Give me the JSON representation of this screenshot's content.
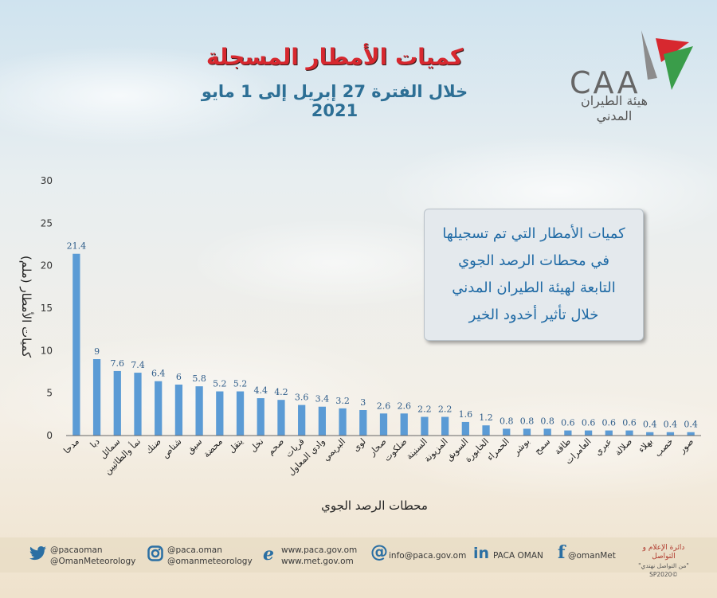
{
  "header": {
    "title": "كميات الأمطار المسجلة",
    "subtitle": "خلال الفترة 27 إبريل إلى 1 مايو 2021"
  },
  "logo": {
    "text": "CAA",
    "arabic": "هيئة الطيران المدني"
  },
  "info_box": {
    "lines": [
      "كميات الأمطار التي تم تسجيلها",
      "في محطات الرصد الجوي",
      "التابعة لهيئة الطيران المدني",
      "خلال تأثير أخدود الخير"
    ]
  },
  "footer": {
    "twitter": [
      "@pacaoman",
      "@OmanMeteorology"
    ],
    "instagram": [
      "@paca.oman",
      "@omanmeteorology"
    ],
    "web": [
      "www.paca.gov.om",
      "www.met.gov.om"
    ],
    "email": "info@paca.gov.om",
    "linkedin": "PACA OMAN",
    "facebook": "@omanMet",
    "department": [
      "دائرة الإعلام و التواصل",
      "\"من التواصل نهتدي\"",
      "©SP2020"
    ]
  },
  "colors": {
    "bar": "#5b9bd5",
    "title": "#d7282f",
    "subtitle": "#2d6f95",
    "axis_text": "#333333"
  },
  "chart_data": {
    "type": "bar",
    "title": "",
    "xlabel": "محطات الرصد الجوي",
    "ylabel": "كميات الأمطار (ملم)",
    "ylim": [
      0,
      30
    ],
    "yticks": [
      0,
      5,
      10,
      15,
      20,
      25,
      30
    ],
    "grid": false,
    "legend": "none",
    "categories": [
      "مدحا",
      "دبا",
      "سمائل",
      "نمأ والطائيين",
      "ضنك",
      "شناص",
      "سيق",
      "محضة",
      "يتقل",
      "نخل",
      "صحم",
      "قريات",
      "وادي المعاول",
      "البريمي",
      "لوى",
      "صحار",
      "ضلكوت",
      "السنينة",
      "المزيونة",
      "السويق",
      "الخابورة",
      "الحمراء",
      "بوشر",
      "سمح",
      "طاقة",
      "العامرات",
      "عبري",
      "صلالة",
      "بهلاء",
      "خصب",
      "صور"
    ],
    "values": [
      21.4,
      9,
      7.6,
      7.4,
      6.4,
      6,
      5.8,
      5.2,
      5.2,
      4.4,
      4.2,
      3.6,
      3.4,
      3.2,
      3,
      2.6,
      2.6,
      2.2,
      2.2,
      1.6,
      1.2,
      0.8,
      0.8,
      0.8,
      0.6,
      0.6,
      0.6,
      0.6,
      0.4,
      0.4,
      0.4
    ],
    "data_labels": [
      "21.4",
      "9",
      "7.6",
      "7.4",
      "6.4",
      "6",
      "5.8",
      "5.2",
      "5.2",
      "4.4",
      "4.2",
      "3.6",
      "3.4",
      "3.2",
      "3",
      "2.6",
      "2.6",
      "2.2",
      "2.2",
      "1.6",
      "1.2",
      "0.8",
      "0.8",
      "0.8",
      "0.6",
      "0.6",
      "0.6",
      "0.6",
      "0.4",
      "0.4",
      "0.4"
    ]
  }
}
